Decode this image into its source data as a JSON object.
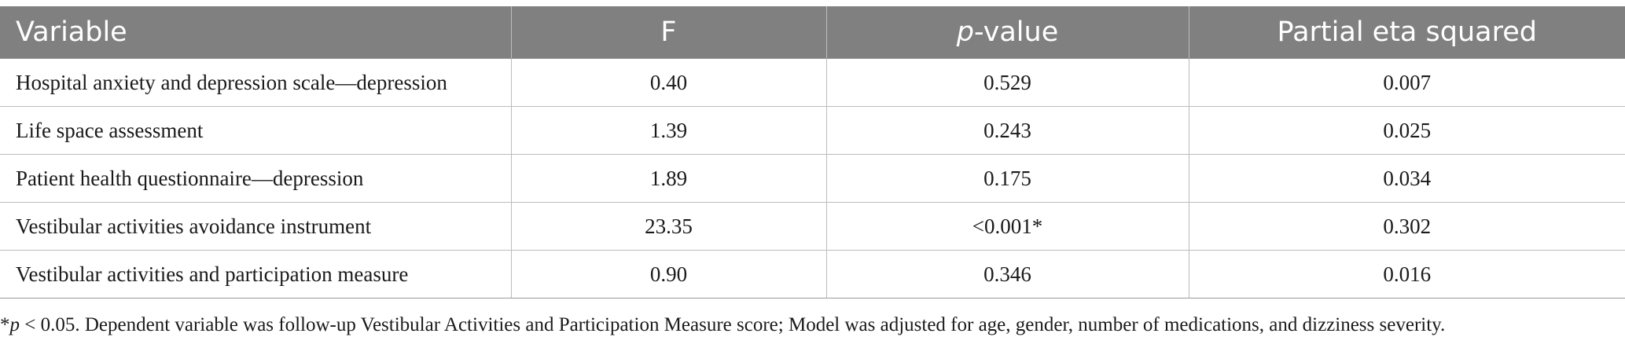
{
  "table": {
    "headers": {
      "variable": "Variable",
      "f": "F",
      "p_italic": "p",
      "p_rest": "-value",
      "eta": "Partial eta squared"
    },
    "rows": [
      {
        "variable": "Hospital anxiety and depression scale—depression",
        "f": "0.40",
        "p": "0.529",
        "eta": "0.007"
      },
      {
        "variable": "Life space assessment",
        "f": "1.39",
        "p": "0.243",
        "eta": "0.025"
      },
      {
        "variable": "Patient health questionnaire—depression",
        "f": "1.89",
        "p": "0.175",
        "eta": "0.034"
      },
      {
        "variable": "Vestibular activities avoidance instrument",
        "f": "23.35",
        "p": "<0.001*",
        "eta": "0.302"
      },
      {
        "variable": "Vestibular activities and participation measure",
        "f": "0.90",
        "p": "0.346",
        "eta": "0.016"
      }
    ]
  },
  "footnote": {
    "star": "*",
    "p_italic": "p",
    "text": " < 0.05. Dependent variable was follow-up Vestibular Activities and Participation Measure score; Model was adjusted for age, gender, number of medications, and dizziness severity."
  }
}
